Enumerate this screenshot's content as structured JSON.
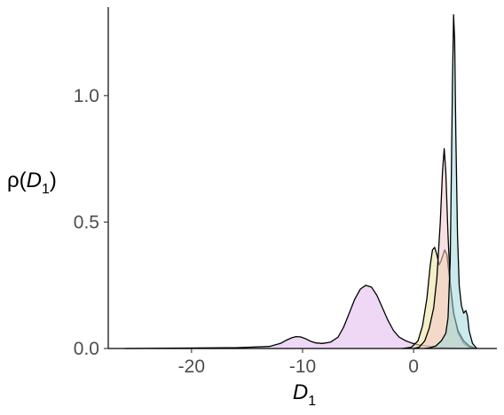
{
  "chart_data": {
    "type": "area",
    "subtype": "density",
    "title": "",
    "xlabel": {
      "symbol": "D",
      "subscript": "1"
    },
    "ylabel": {
      "prefix": "ρ(",
      "symbol": "D",
      "subscript": "1",
      "suffix": ")"
    },
    "xlim": [
      -27.5,
      7.5
    ],
    "ylim": [
      0,
      1.35
    ],
    "x_ticks": [
      -20,
      -10,
      0
    ],
    "x_tick_labels": [
      "-20",
      "-10",
      "0"
    ],
    "y_ticks": [
      0,
      0.5,
      1.0
    ],
    "y_tick_labels": [
      "0.0",
      "0.5",
      "1.0"
    ],
    "grid": false,
    "legend": "none",
    "series": [
      {
        "color": "#e0b8ee",
        "points": [
          [
            -26,
            0
          ],
          [
            -22,
            0.001
          ],
          [
            -16,
            0.003
          ],
          [
            -13,
            0.008
          ],
          [
            -12,
            0.02
          ],
          [
            -11.5,
            0.032
          ],
          [
            -11,
            0.042
          ],
          [
            -10.6,
            0.047
          ],
          [
            -10.2,
            0.046
          ],
          [
            -9.8,
            0.04
          ],
          [
            -9.3,
            0.029
          ],
          [
            -8.8,
            0.022
          ],
          [
            -8.2,
            0.02
          ],
          [
            -7.5,
            0.025
          ],
          [
            -6.8,
            0.045
          ],
          [
            -6.3,
            0.085
          ],
          [
            -5.8,
            0.14
          ],
          [
            -5.3,
            0.195
          ],
          [
            -4.8,
            0.235
          ],
          [
            -4.3,
            0.25
          ],
          [
            -3.8,
            0.243
          ],
          [
            -3.3,
            0.21
          ],
          [
            -2.8,
            0.16
          ],
          [
            -2.3,
            0.11
          ],
          [
            -1.8,
            0.07
          ],
          [
            -1.3,
            0.045
          ],
          [
            -0.7,
            0.03
          ],
          [
            -0.2,
            0.022
          ],
          [
            0.5,
            0.014
          ],
          [
            1.2,
            0.01
          ],
          [
            2,
            0.006
          ],
          [
            3,
            0.003
          ],
          [
            4,
            0.001
          ],
          [
            5,
            0
          ]
        ]
      },
      {
        "color": "#e9e29a",
        "points": [
          [
            -1,
            0
          ],
          [
            -0.2,
            0.005
          ],
          [
            0.4,
            0.03
          ],
          [
            0.8,
            0.09
          ],
          [
            1.2,
            0.2
          ],
          [
            1.5,
            0.33
          ],
          [
            1.7,
            0.39
          ],
          [
            1.9,
            0.4
          ],
          [
            2.1,
            0.37
          ],
          [
            2.3,
            0.33
          ],
          [
            2.5,
            0.35
          ],
          [
            2.8,
            0.39
          ],
          [
            3,
            0.37
          ],
          [
            3.3,
            0.25
          ],
          [
            3.6,
            0.14
          ],
          [
            4,
            0.06
          ],
          [
            4.5,
            0.02
          ],
          [
            5,
            0.005
          ],
          [
            5.6,
            0
          ]
        ]
      },
      {
        "color": "#f2c8c8",
        "points": [
          [
            0,
            0
          ],
          [
            0.5,
            0.005
          ],
          [
            1,
            0.03
          ],
          [
            1.4,
            0.08
          ],
          [
            1.8,
            0.16
          ],
          [
            2.1,
            0.28
          ],
          [
            2.4,
            0.5
          ],
          [
            2.6,
            0.7
          ],
          [
            2.75,
            0.79
          ],
          [
            2.9,
            0.7
          ],
          [
            3.1,
            0.45
          ],
          [
            3.3,
            0.26
          ],
          [
            3.6,
            0.14
          ],
          [
            4,
            0.07
          ],
          [
            4.5,
            0.03
          ],
          [
            5,
            0.01
          ],
          [
            5.6,
            0
          ]
        ]
      },
      {
        "color": "#9fd9dc",
        "points": [
          [
            1,
            0
          ],
          [
            1.5,
            0.003
          ],
          [
            2,
            0.01
          ],
          [
            2.5,
            0.03
          ],
          [
            2.9,
            0.06
          ],
          [
            3.1,
            0.12
          ],
          [
            3.3,
            0.35
          ],
          [
            3.4,
            0.7
          ],
          [
            3.5,
            1.05
          ],
          [
            3.6,
            1.32
          ],
          [
            3.7,
            1.22
          ],
          [
            3.8,
            0.85
          ],
          [
            3.95,
            0.45
          ],
          [
            4.1,
            0.25
          ],
          [
            4.3,
            0.17
          ],
          [
            4.5,
            0.14
          ],
          [
            4.7,
            0.15
          ],
          [
            4.85,
            0.13
          ],
          [
            5,
            0.07
          ],
          [
            5.3,
            0.02
          ],
          [
            5.7,
            0
          ]
        ]
      }
    ]
  }
}
